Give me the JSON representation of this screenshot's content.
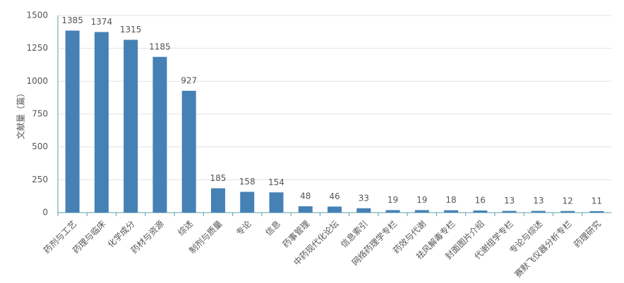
{
  "chart_data": {
    "type": "bar",
    "y_label": "文献量（篇）",
    "categories": [
      "药剂与工艺",
      "药理与临床",
      "化学成分",
      "药材与资源",
      "综述",
      "制剂与质量",
      "专论",
      "信息",
      "药事管理",
      "中药现代化论坛",
      "信息索引",
      "网络药理学专栏",
      "药效与代谢",
      "祛风解毒专栏",
      "封面图片介绍",
      "代谢组学专栏",
      "专论与综述",
      "赛默飞仪器分析专栏",
      "药理研究"
    ],
    "values": [
      1385,
      1374,
      1315,
      1185,
      927,
      185,
      158,
      154,
      48,
      46,
      33,
      19,
      19,
      18,
      16,
      13,
      13,
      12,
      11
    ],
    "color": "#4581b5",
    "ylim": [
      0,
      1500
    ],
    "yticks": [
      0,
      250,
      500,
      750,
      1000,
      1250,
      1500
    ],
    "grid": true
  }
}
